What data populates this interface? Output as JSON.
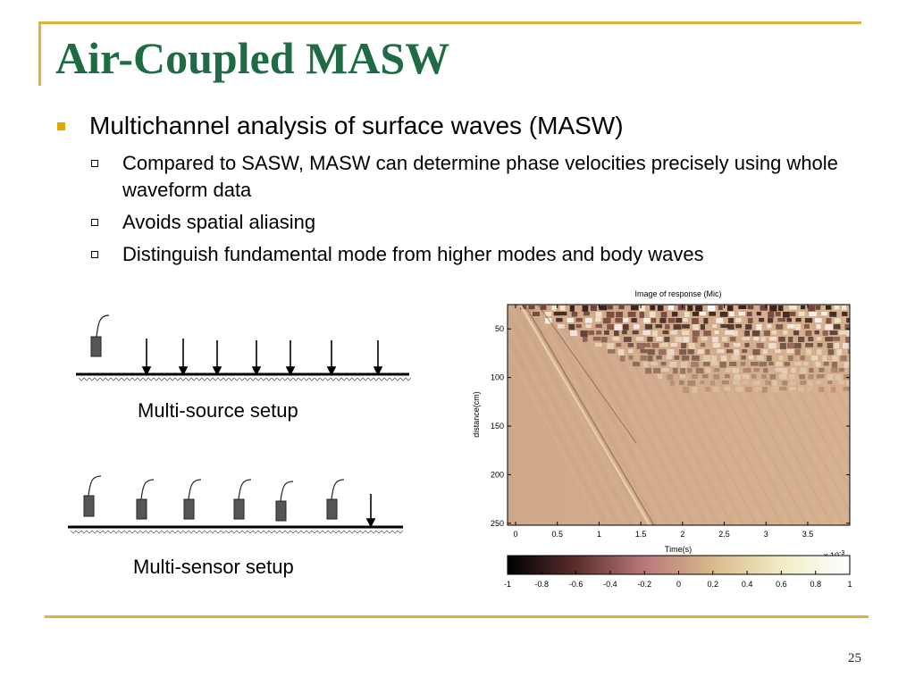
{
  "title": "Air-Coupled MASW",
  "bullet_main": "Multichannel analysis of surface waves (MASW)",
  "sub_bullets": [
    "Compared to SASW, MASW can determine phase velocities precisely using whole waveform data",
    "Avoids spatial aliasing",
    "Distinguish fundamental mode from higher modes and body waves"
  ],
  "diagram_top_caption": "Multi-source setup",
  "diagram_bottom_caption": "Multi-sensor setup",
  "plot": {
    "title": "Image of response (Mic)",
    "xlabel": "Time(s)",
    "ylabel": "distance(cm)",
    "x_ticks": [
      "0",
      "0.5",
      "1",
      "1.5",
      "2",
      "2.5",
      "3",
      "3.5"
    ],
    "x_multiplier": "x 10",
    "x_multiplier_exp": "-3",
    "y_ticks": [
      "50",
      "100",
      "150",
      "200",
      "250"
    ],
    "colorbar_ticks": [
      "-1",
      "-0.8",
      "-0.6",
      "-0.4",
      "-0.2",
      "0",
      "0.2",
      "0.4",
      "0.6",
      "0.8",
      "1"
    ],
    "colorbar_colors": [
      "#000000",
      "#5c2d2d",
      "#b87878",
      "#d9b98c",
      "#f0ecc4",
      "#ffffff"
    ]
  },
  "slide_number": "25"
}
